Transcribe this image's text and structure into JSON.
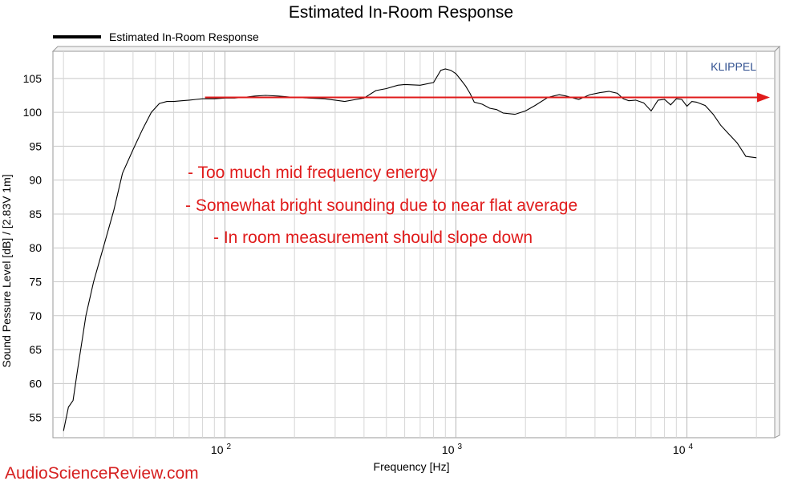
{
  "chart_data": {
    "type": "line",
    "title": "Estimated In-Room Response",
    "xlabel": "Frequency [Hz]",
    "ylabel": "Sound Pessure Level [dB]  / [2.83V 1m]",
    "x_scale": "log",
    "xlim": [
      18,
      24000
    ],
    "ylim": [
      52,
      109
    ],
    "y_ticks": [
      55,
      60,
      65,
      70,
      75,
      80,
      85,
      90,
      95,
      100,
      105
    ],
    "x_ticks": [
      {
        "value": 100,
        "base": "10",
        "exp": "2"
      },
      {
        "value": 1000,
        "base": "10",
        "exp": "3"
      },
      {
        "value": 10000,
        "base": "10",
        "exp": "4"
      }
    ],
    "grid": true,
    "legend": {
      "position": "top-left",
      "entries": [
        "Estimated In-Room Response"
      ]
    },
    "series": [
      {
        "name": "Estimated In-Room Response",
        "color": "#000000",
        "x": [
          20,
          21,
          22,
          23,
          25,
          27,
          30,
          33,
          36,
          40,
          44,
          48,
          52,
          56,
          60,
          65,
          70,
          75,
          80,
          90,
          100,
          110,
          120,
          135,
          150,
          170,
          200,
          230,
          270,
          300,
          330,
          370,
          400,
          450,
          500,
          560,
          600,
          700,
          800,
          860,
          900,
          950,
          1000,
          1050,
          1100,
          1150,
          1200,
          1300,
          1400,
          1500,
          1600,
          1800,
          2000,
          2200,
          2500,
          2800,
          3000,
          3400,
          3800,
          4200,
          4600,
          5000,
          5300,
          5600,
          6000,
          6500,
          7000,
          7500,
          8000,
          8500,
          9000,
          9500,
          10000,
          10500,
          11000,
          12000,
          13000,
          14000,
          15000,
          16500,
          18000,
          20000
        ],
        "y": [
          53,
          56.5,
          57.5,
          62,
          70,
          75,
          80.5,
          85.5,
          91,
          94.5,
          97.5,
          100,
          101.3,
          101.6,
          101.6,
          101.7,
          101.8,
          101.9,
          102.0,
          102.0,
          102.1,
          102.1,
          102.2,
          102.4,
          102.5,
          102.4,
          102.2,
          102.1,
          102.0,
          101.8,
          101.6,
          101.9,
          102.1,
          103.2,
          103.5,
          104.0,
          104.1,
          104.0,
          104.4,
          106.2,
          106.4,
          106.2,
          105.7,
          104.8,
          103.9,
          102.8,
          101.5,
          101.2,
          100.6,
          100.4,
          99.9,
          99.7,
          100.2,
          101.0,
          102.2,
          102.6,
          102.4,
          101.9,
          102.6,
          102.9,
          103.1,
          102.8,
          102.0,
          101.7,
          101.8,
          101.4,
          100.2,
          101.8,
          101.9,
          101.1,
          102.0,
          101.9,
          100.9,
          101.6,
          101.5,
          101.0,
          99.7,
          98.1,
          97.0,
          95.5,
          93.5,
          93.3
        ]
      }
    ],
    "reference_arrow": {
      "x_start": 82,
      "x_end": 24000,
      "y": 102.2,
      "color": "#e01b1b"
    },
    "annotations": [
      "- Too much mid frequency energy",
      "- Somewhat bright sounding due to near flat average",
      "- In room measurement should slope down"
    ],
    "brand_label": "KLIPPEL",
    "watermark": "AudioScienceReview.com"
  }
}
